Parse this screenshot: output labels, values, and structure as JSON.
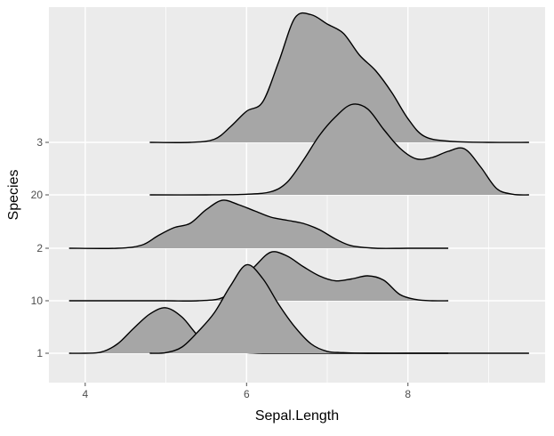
{
  "chart_data": {
    "type": "ridgeline",
    "xlabel": "Sepal.Length",
    "ylabel": "Species",
    "xlim": [
      3.55,
      9.7
    ],
    "x_ticks": [
      4,
      6,
      8
    ],
    "x_minor_ticks": [
      5,
      7,
      9
    ],
    "categories": [
      "1",
      "10",
      "2",
      "20",
      "3"
    ],
    "grid": true,
    "legend": "none",
    "colors": {
      "panel": "#ebebeb",
      "grid": "#ffffff",
      "fill": "#a6a6a6",
      "line": "#000000",
      "tick": "#4d4d4d"
    },
    "series": [
      {
        "category": "1",
        "x": [
          3.8,
          4.0,
          4.2,
          4.4,
          4.6,
          4.8,
          5.0,
          5.2,
          5.4,
          5.6,
          5.8,
          6.0,
          6.2,
          6.4,
          6.6,
          6.8,
          7.0,
          7.2,
          7.5,
          8.0,
          8.5
        ],
        "density": [
          0.0,
          0.0,
          0.02,
          0.15,
          0.4,
          0.63,
          0.73,
          0.58,
          0.28,
          0.12,
          0.04,
          0.01,
          0.0,
          0.0,
          0.0,
          0.0,
          0.0,
          0.0,
          0.0,
          0.0,
          0.0
        ]
      },
      {
        "category": "1",
        "x": [
          4.8,
          5.0,
          5.2,
          5.4,
          5.6,
          5.8,
          6.0,
          6.2,
          6.4,
          6.6,
          6.8,
          7.0,
          7.2,
          7.5,
          8.0,
          8.5,
          9.0,
          9.5
        ],
        "density": [
          0.0,
          0.01,
          0.1,
          0.35,
          0.65,
          1.08,
          1.42,
          1.2,
          0.78,
          0.42,
          0.15,
          0.03,
          0.01,
          0.0,
          0.0,
          0.0,
          0.0,
          0.0
        ]
      },
      {
        "category": "10",
        "x": [
          3.8,
          4.5,
          5.0,
          5.4,
          5.7,
          5.9,
          6.1,
          6.3,
          6.5,
          6.7,
          6.9,
          7.1,
          7.3,
          7.5,
          7.7,
          7.9,
          8.1,
          8.3,
          8.5
        ],
        "density": [
          0.0,
          0.0,
          0.0,
          0.0,
          0.05,
          0.28,
          0.55,
          0.78,
          0.72,
          0.55,
          0.4,
          0.32,
          0.35,
          0.4,
          0.33,
          0.1,
          0.02,
          0.0,
          0.0
        ]
      },
      {
        "category": "2",
        "x": [
          3.8,
          4.4,
          4.7,
          4.9,
          5.1,
          5.3,
          5.5,
          5.7,
          5.9,
          6.1,
          6.3,
          6.5,
          6.7,
          6.9,
          7.1,
          7.3,
          7.6,
          8.0,
          8.5
        ],
        "density": [
          0.0,
          0.0,
          0.05,
          0.2,
          0.33,
          0.4,
          0.62,
          0.77,
          0.7,
          0.6,
          0.5,
          0.45,
          0.4,
          0.3,
          0.15,
          0.04,
          0.0,
          0.0,
          0.0
        ]
      },
      {
        "category": "20",
        "x": [
          4.8,
          5.5,
          6.0,
          6.3,
          6.5,
          6.7,
          6.9,
          7.1,
          7.3,
          7.5,
          7.7,
          7.9,
          8.1,
          8.3,
          8.5,
          8.7,
          8.9,
          9.1,
          9.3,
          9.5
        ],
        "density": [
          0.0,
          0.0,
          0.01,
          0.05,
          0.2,
          0.55,
          0.95,
          1.25,
          1.45,
          1.38,
          1.05,
          0.75,
          0.58,
          0.6,
          0.7,
          0.74,
          0.45,
          0.1,
          0.01,
          0.0
        ]
      },
      {
        "category": "3",
        "x": [
          4.8,
          5.3,
          5.6,
          5.8,
          6.0,
          6.2,
          6.4,
          6.6,
          6.8,
          7.0,
          7.2,
          7.4,
          7.6,
          7.8,
          8.0,
          8.2,
          8.5,
          9.0,
          9.5
        ],
        "density": [
          0.0,
          0.0,
          0.05,
          0.25,
          0.5,
          0.65,
          1.3,
          2.0,
          2.05,
          1.9,
          1.75,
          1.4,
          1.15,
          0.8,
          0.38,
          0.1,
          0.02,
          0.0,
          0.0
        ]
      }
    ]
  }
}
